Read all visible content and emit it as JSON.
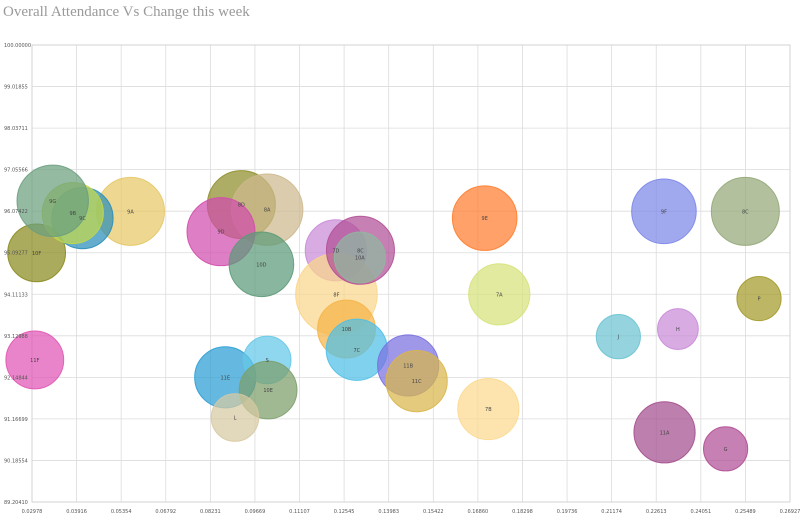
{
  "chart_data": {
    "type": "scatter",
    "title": "Overall Attendance Vs Change this week",
    "xlabel": "",
    "ylabel": "",
    "xlim": [
      0.02978,
      0.2793
    ],
    "ylim": [
      89.2041,
      100.0
    ],
    "x_tick_labels": [
      "0.02978",
      "0.03916",
      "0.05354",
      "0.06792",
      "0.08231",
      "0.09669",
      "0.11107",
      "0.12545",
      "0.13983",
      "0.15422",
      "0.16860",
      "0.18298",
      "0.19736",
      "0.21174",
      "0.22613",
      "0.24051",
      "0.25489",
      "0.26927"
    ],
    "y_tick_labels": [
      "100.00000",
      "99.01855",
      "98.03711",
      "97.05566",
      "96.07422",
      "95.09277",
      "94.11133",
      "93.12988",
      "92.14844",
      "91.16699",
      "90.18554",
      "89.20410"
    ],
    "grid": true,
    "legend": "none",
    "bubbles": [
      {
        "label": "9A",
        "x": 0.0622,
        "y": 96.07,
        "size": 1.0,
        "color": "#e6c766"
      },
      {
        "label": "10F",
        "x": 0.0313,
        "y": 95.09,
        "size": 0.85,
        "color": "#8a8a1e"
      },
      {
        "label": "11F",
        "x": 0.0307,
        "y": 92.56,
        "size": 0.85,
        "color": "#e055b5"
      },
      {
        "label": "9C",
        "x": 0.0464,
        "y": 95.91,
        "size": 0.9,
        "color": "#2a8db8"
      },
      {
        "label": "9B",
        "x": 0.0432,
        "y": 96.03,
        "size": 0.9,
        "color": "#c2d84a"
      },
      {
        "label": "9G",
        "x": 0.0366,
        "y": 96.32,
        "size": 1.05,
        "color": "#6b9f7e"
      },
      {
        "label": "8D",
        "x": 0.0987,
        "y": 96.23,
        "size": 1.0,
        "color": "#8f8e2a"
      },
      {
        "label": "8A",
        "x": 0.1072,
        "y": 96.11,
        "size": 1.05,
        "color": "#cdb98e"
      },
      {
        "label": "9D",
        "x": 0.092,
        "y": 95.59,
        "size": 1.0,
        "color": "#d14cad"
      },
      {
        "label": "10D",
        "x": 0.1053,
        "y": 94.82,
        "size": 0.95,
        "color": "#5c9a78"
      },
      {
        "label": "7D",
        "x": 0.1298,
        "y": 95.15,
        "size": 0.9,
        "color": "#c98ad8"
      },
      {
        "label": "8F",
        "x": 0.13,
        "y": 94.11,
        "size": 1.2,
        "color": "#fad68a"
      },
      {
        "label": "8C",
        "x": 0.1379,
        "y": 95.15,
        "size": 1.0,
        "color": "#b14f96"
      },
      {
        "label": "10A",
        "x": 0.1377,
        "y": 94.98,
        "size": 0.75,
        "color": "#8fb8a0"
      },
      {
        "label": "10B",
        "x": 0.1333,
        "y": 93.29,
        "size": 0.85,
        "color": "#f5b447"
      },
      {
        "label": "7C",
        "x": 0.1367,
        "y": 92.8,
        "size": 0.9,
        "color": "#4fbfe8"
      },
      {
        "label": "11B",
        "x": 0.1536,
        "y": 92.43,
        "size": 0.9,
        "color": "#7a70e0"
      },
      {
        "label": "11C",
        "x": 0.1564,
        "y": 92.06,
        "size": 0.9,
        "color": "#d9b54a"
      },
      {
        "label": "9E",
        "x": 0.1788,
        "y": 95.91,
        "size": 0.95,
        "color": "#ff7d2e"
      },
      {
        "label": "7A",
        "x": 0.1836,
        "y": 94.11,
        "size": 0.9,
        "color": "#d6e27a"
      },
      {
        "label": "7B",
        "x": 0.18,
        "y": 91.4,
        "size": 0.9,
        "color": "#fcd98f"
      },
      {
        "label": "9F",
        "x": 0.2378,
        "y": 96.07,
        "size": 0.95,
        "color": "#7b86e8"
      },
      {
        "label": "8C",
        "x": 0.2646,
        "y": 96.07,
        "size": 1.0,
        "color": "#94a878"
      },
      {
        "label": "J",
        "x": 0.2228,
        "y": 93.11,
        "size": 0.65,
        "color": "#6cc3d3"
      },
      {
        "label": "H",
        "x": 0.2424,
        "y": 93.29,
        "size": 0.6,
        "color": "#c98ad8"
      },
      {
        "label": "P",
        "x": 0.2691,
        "y": 94.01,
        "size": 0.65,
        "color": "#a39a2a"
      },
      {
        "label": "11A",
        "x": 0.238,
        "y": 90.85,
        "size": 0.9,
        "color": "#a44e8d"
      },
      {
        "label": "G",
        "x": 0.2581,
        "y": 90.46,
        "size": 0.65,
        "color": "#b14f96"
      },
      {
        "label": "11E",
        "x": 0.0934,
        "y": 92.15,
        "size": 0.9,
        "color": "#2a9ed4"
      },
      {
        "label": "S",
        "x": 0.1072,
        "y": 92.56,
        "size": 0.7,
        "color": "#64c8e8"
      },
      {
        "label": "10E",
        "x": 0.1075,
        "y": 91.85,
        "size": 0.85,
        "color": "#7c9e6a"
      },
      {
        "label": "L",
        "x": 0.0966,
        "y": 91.2,
        "size": 0.7,
        "color": "#d7c9a2"
      }
    ]
  }
}
